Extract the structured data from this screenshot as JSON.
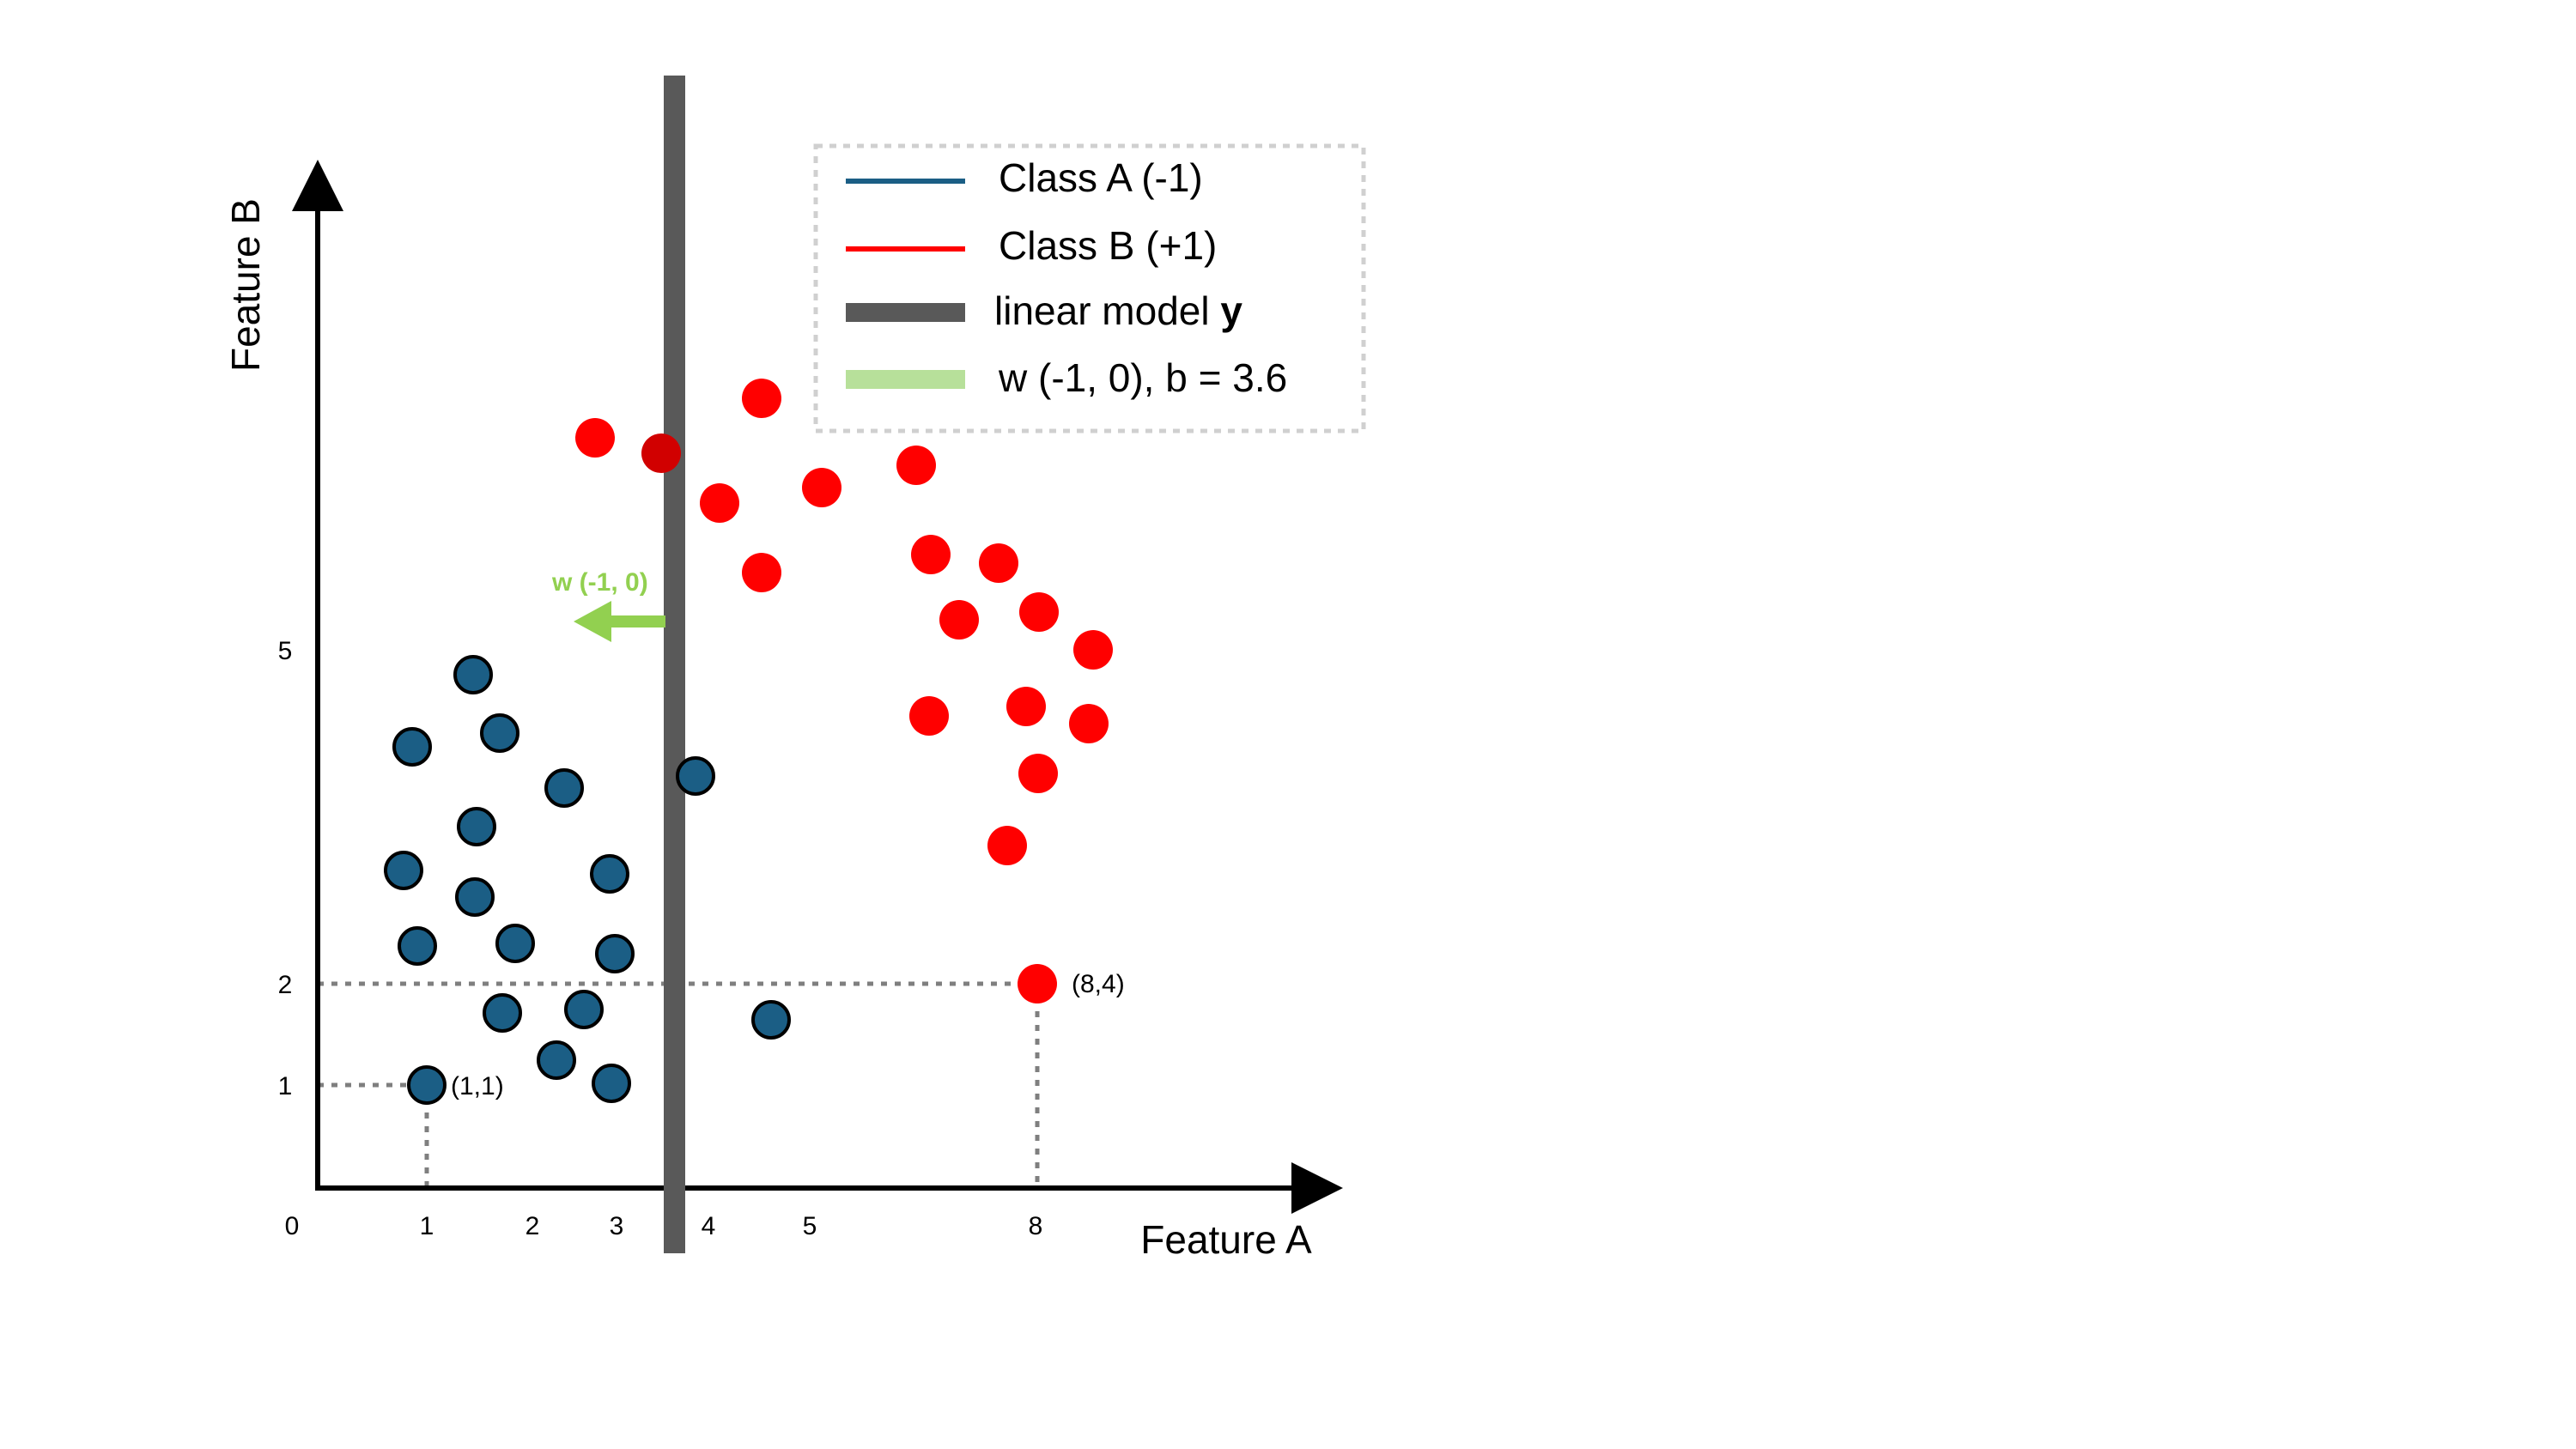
{
  "axes": {
    "x_title": "Feature A",
    "y_title": "Feature B",
    "x_ticks": [
      "0",
      "1",
      "2",
      "3",
      "4",
      "5",
      "8"
    ],
    "y_ticks": [
      "1",
      "2",
      "5"
    ]
  },
  "legend": {
    "class_a": "Class A (-1)",
    "class_b": "Class B (+1)",
    "model_prefix": "linear model ",
    "model_var": "y",
    "params": "w (-1, 0), b = 3.6"
  },
  "annotations": {
    "point_a": "(1,1)",
    "point_b": "(8,4)",
    "w_arrow": "w (-1, 0)"
  },
  "colors": {
    "class_a": "#1b5e85",
    "class_b": "#ff0000",
    "model": "#595959",
    "weight": "#92d050"
  }
}
